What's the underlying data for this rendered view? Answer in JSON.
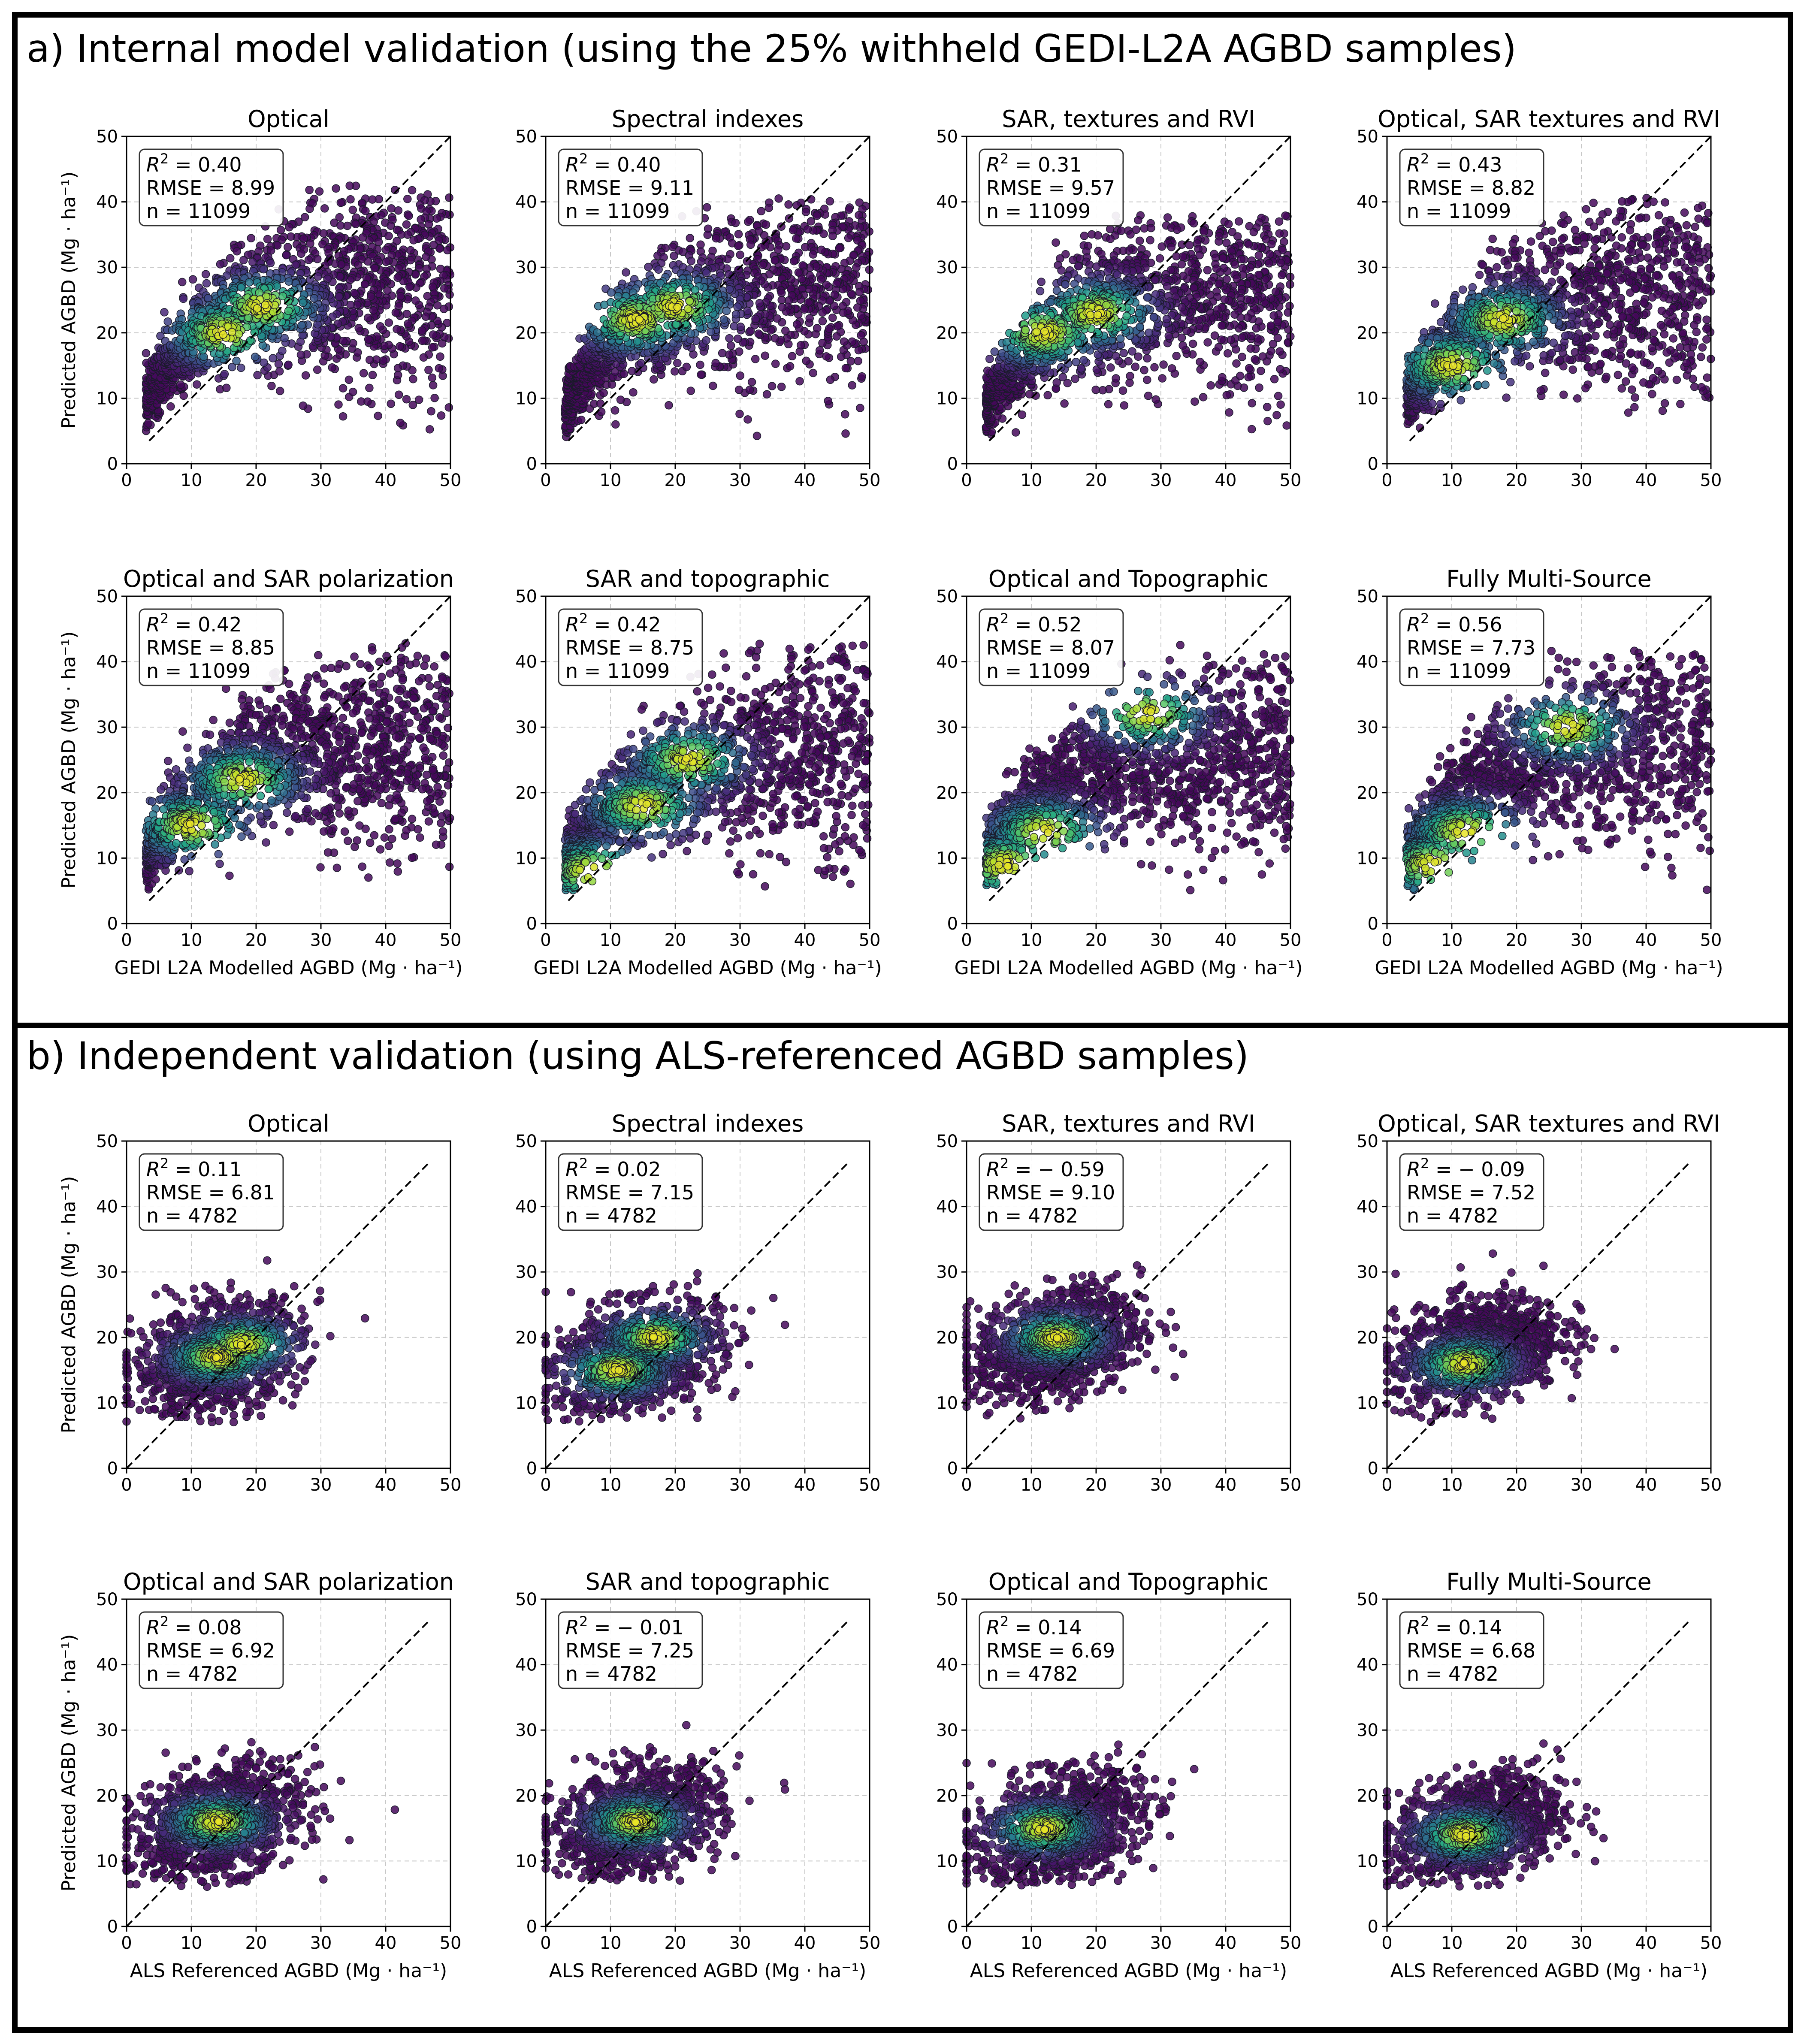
{
  "sections": [
    {
      "title": "a) Internal model validation (using the 25% withheld GEDI-L2A AGBD samples)",
      "xlabel": "GEDI L2A Modelled AGBD (Mg · ha⁻¹)",
      "panels": [
        {
          "title": "Optical",
          "r2": "0.40",
          "rmse": "8.99",
          "n": "11099"
        },
        {
          "title": "Spectral indexes",
          "r2": "0.40",
          "rmse": "9.11",
          "n": "11099"
        },
        {
          "title": "SAR, textures and RVI",
          "r2": "0.31",
          "rmse": "9.57",
          "n": "11099"
        },
        {
          "title": "Optical, SAR textures and RVI",
          "r2": "0.43",
          "rmse": "8.82",
          "n": "11099"
        },
        {
          "title": "Optical and SAR polarization",
          "r2": "0.42",
          "rmse": "8.85",
          "n": "11099"
        },
        {
          "title": "SAR and topographic",
          "r2": "0.42",
          "rmse": "8.75",
          "n": "11099"
        },
        {
          "title": "Optical and Topographic",
          "r2": "0.52",
          "rmse": "8.07",
          "n": "11099"
        },
        {
          "title": "Fully Multi-Source",
          "r2": "0.56",
          "rmse": "7.73",
          "n": "11099"
        }
      ]
    },
    {
      "title": "b) Independent validation (using ALS-referenced AGBD samples)",
      "xlabel": "ALS Referenced AGBD (Mg · ha⁻¹)",
      "panels": [
        {
          "title": "Optical",
          "r2": "0.11",
          "rmse": "6.81",
          "n": "4782"
        },
        {
          "title": "Spectral indexes",
          "r2": "0.02",
          "rmse": "7.15",
          "n": "4782"
        },
        {
          "title": "SAR, textures and RVI",
          "r2": "− 0.59",
          "rmse": "9.10",
          "n": "4782"
        },
        {
          "title": "Optical, SAR textures and RVI",
          "r2": "− 0.09",
          "rmse": "7.52",
          "n": "4782"
        },
        {
          "title": "Optical and SAR polarization",
          "r2": "0.08",
          "rmse": "6.92",
          "n": "4782"
        },
        {
          "title": "SAR and topographic",
          "r2": "− 0.01",
          "rmse": "7.25",
          "n": "4782"
        },
        {
          "title": "Optical and Topographic",
          "r2": "0.14",
          "rmse": "6.69",
          "n": "4782"
        },
        {
          "title": "Fully Multi-Source",
          "r2": "0.14",
          "rmse": "6.68",
          "n": "4782"
        }
      ]
    }
  ],
  "ylabel": "Predicted AGBD (Mg · ha⁻¹)",
  "r2_prefix": "R² = ",
  "rmse_prefix": "RMSE = ",
  "n_prefix": "n = ",
  "chart_data": {
    "type": "scatter",
    "note_density": "points colored by point density (viridis: purple low, yellow high); dashed 1:1 line",
    "xlim": [
      0,
      50
    ],
    "ylim": [
      0,
      50
    ],
    "ticks": [
      0,
      10,
      20,
      30,
      40,
      50
    ],
    "grid": true,
    "colors": {
      "low": "#440154",
      "mid1": "#3b528b",
      "mid2": "#21918c",
      "mid3": "#5ec962",
      "high": "#fde725"
    },
    "one_to_one_line": {
      "from": [
        3.5,
        3.5
      ],
      "to": [
        50,
        50
      ],
      "from_als": [
        0,
        0
      ],
      "to_als": [
        46.5,
        46.5
      ]
    },
    "clouds": [
      {
        "cx": 20,
        "cy": 22,
        "sx": 11,
        "sy": 7,
        "hot": [
          [
            15,
            20
          ],
          [
            21,
            24
          ]
        ],
        "xr": [
          3,
          50
        ],
        "yr": [
          5,
          43
        ]
      },
      {
        "cx": 20,
        "cy": 22,
        "sx": 11,
        "sy": 7,
        "hot": [
          [
            14,
            22
          ],
          [
            20,
            24
          ]
        ],
        "xr": [
          3,
          50
        ],
        "yr": [
          4,
          41
        ]
      },
      {
        "cx": 20,
        "cy": 21,
        "sx": 11,
        "sy": 7,
        "hot": [
          [
            12,
            20
          ],
          [
            20,
            23
          ]
        ],
        "xr": [
          3,
          50
        ],
        "yr": [
          4,
          38
        ]
      },
      {
        "cx": 20,
        "cy": 21,
        "sx": 11,
        "sy": 8,
        "hot": [
          [
            10,
            15
          ],
          [
            18,
            22
          ]
        ],
        "xr": [
          3,
          50
        ],
        "yr": [
          5,
          41
        ]
      },
      {
        "cx": 22,
        "cy": 22,
        "sx": 11,
        "sy": 8,
        "hot": [
          [
            10,
            15
          ],
          [
            18,
            22
          ]
        ],
        "xr": [
          3,
          50
        ],
        "yr": [
          5,
          43
        ]
      },
      {
        "cx": 22,
        "cy": 21,
        "sx": 12,
        "sy": 8,
        "hot": [
          [
            7,
            8
          ],
          [
            15,
            18
          ],
          [
            22,
            25
          ]
        ],
        "xr": [
          3,
          50
        ],
        "yr": [
          4,
          43
        ]
      },
      {
        "cx": 22,
        "cy": 21,
        "sx": 12,
        "sy": 8,
        "hot": [
          [
            6,
            9
          ],
          [
            12,
            14
          ],
          [
            28,
            32
          ]
        ],
        "xr": [
          3,
          50
        ],
        "yr": [
          5,
          43
        ]
      },
      {
        "cx": 22,
        "cy": 22,
        "sx": 12,
        "sy": 8,
        "hot": [
          [
            7,
            9
          ],
          [
            12,
            14
          ],
          [
            28,
            30
          ]
        ],
        "xr": [
          3,
          50
        ],
        "yr": [
          5,
          42
        ]
      },
      {
        "cx": 14,
        "cy": 17,
        "sx": 8,
        "sy": 4,
        "hot": [
          [
            14,
            17
          ],
          [
            18,
            19
          ]
        ],
        "xr": [
          0,
          46
        ],
        "yr": [
          7,
          33
        ]
      },
      {
        "cx": 14,
        "cy": 17,
        "sx": 8,
        "sy": 4,
        "hot": [
          [
            11,
            15
          ],
          [
            17,
            20
          ]
        ],
        "xr": [
          0,
          46
        ],
        "yr": [
          7,
          33
        ]
      },
      {
        "cx": 14,
        "cy": 19,
        "sx": 8,
        "sy": 4,
        "hot": [
          [
            14,
            20
          ]
        ],
        "xr": [
          0,
          46
        ],
        "yr": [
          7,
          35
        ]
      },
      {
        "cx": 14,
        "cy": 18,
        "sx": 8,
        "sy": 4,
        "hot": [
          [
            12,
            16
          ]
        ],
        "xr": [
          0,
          46
        ],
        "yr": [
          7,
          33
        ]
      },
      {
        "cx": 14,
        "cy": 16,
        "sx": 8,
        "sy": 4,
        "hot": [
          [
            14,
            16
          ]
        ],
        "xr": [
          0,
          46
        ],
        "yr": [
          6,
          30
        ]
      },
      {
        "cx": 14,
        "cy": 16,
        "sx": 8,
        "sy": 4,
        "hot": [
          [
            14,
            16
          ]
        ],
        "xr": [
          0,
          46
        ],
        "yr": [
          7,
          32
        ]
      },
      {
        "cx": 14,
        "cy": 15,
        "sx": 8,
        "sy": 4,
        "hot": [
          [
            12,
            15
          ]
        ],
        "xr": [
          0,
          46
        ],
        "yr": [
          6,
          30
        ]
      },
      {
        "cx": 14,
        "cy": 15,
        "sx": 8,
        "sy": 4,
        "hot": [
          [
            12,
            14
          ]
        ],
        "xr": [
          0,
          46
        ],
        "yr": [
          6,
          30
        ]
      }
    ]
  }
}
